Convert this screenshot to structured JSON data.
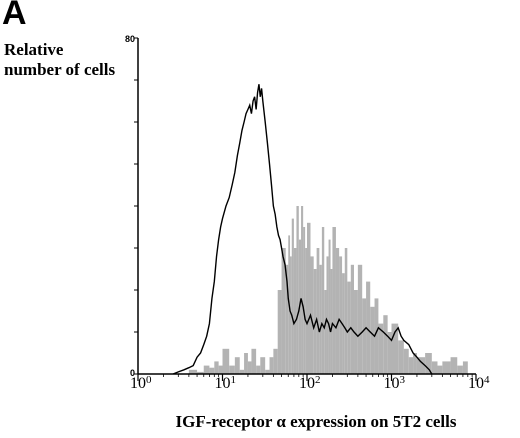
{
  "panel_label": "A",
  "chart_data": {
    "type": "area",
    "title": "",
    "ylabel": "Relative number of cells",
    "xlabel": "IGF-receptor α expression on 5T2 cells",
    "x_scale": "log",
    "xlim": [
      1,
      10000
    ],
    "ylim": [
      0,
      80
    ],
    "y_max_label": "80",
    "y_zero_label": "0",
    "x_ticks": [
      {
        "base": "10",
        "exp": "0",
        "value": 1
      },
      {
        "base": "10",
        "exp": "1",
        "value": 10
      },
      {
        "base": "10",
        "exp": "2",
        "value": 100
      },
      {
        "base": "10",
        "exp": "3",
        "value": 1000
      },
      {
        "base": "10",
        "exp": "4",
        "value": 10000
      }
    ],
    "series": [
      {
        "style": "filled",
        "color": "#b3b3b3",
        "x": [
          3,
          4,
          5,
          6,
          7,
          8,
          9,
          10,
          12,
          14,
          16,
          18,
          20,
          22,
          25,
          28,
          32,
          36,
          40,
          45,
          50,
          56,
          60,
          63,
          66,
          70,
          75,
          80,
          85,
          90,
          95,
          100,
          110,
          120,
          130,
          140,
          150,
          160,
          170,
          180,
          190,
          200,
          220,
          240,
          260,
          280,
          300,
          330,
          360,
          400,
          450,
          500,
          560,
          630,
          700,
          800,
          900,
          1000,
          1200,
          1400,
          1600,
          1800,
          2000,
          2500,
          3000,
          3500,
          4000,
          5000,
          6000,
          7000,
          8000
        ],
        "y": [
          0,
          1,
          0.5,
          2,
          1.5,
          3,
          2,
          6,
          2,
          4,
          1,
          5,
          3,
          6,
          2,
          4,
          1,
          4,
          6,
          20,
          30,
          26,
          33,
          28,
          37,
          30,
          40,
          32,
          40,
          35,
          30,
          36,
          28,
          25,
          30,
          26,
          35,
          20,
          28,
          32,
          25,
          35,
          30,
          28,
          24,
          30,
          22,
          26,
          20,
          26,
          18,
          22,
          16,
          18,
          12,
          14,
          10,
          12,
          8,
          6,
          4,
          5,
          4,
          5,
          3,
          2,
          3,
          4,
          2,
          3,
          0
        ]
      },
      {
        "style": "line",
        "color": "#000000",
        "x": [
          2.6,
          3,
          3.5,
          4,
          4.5,
          5,
          5.5,
          6,
          6.5,
          7,
          7.5,
          8,
          8.5,
          9,
          9.5,
          10,
          11,
          12,
          13,
          14,
          15,
          16,
          17,
          18,
          19,
          20,
          21,
          22,
          23,
          24,
          25,
          26,
          27,
          28,
          29,
          30,
          32,
          34,
          36,
          38,
          40,
          42,
          44,
          46,
          48,
          50,
          52,
          55,
          58,
          60,
          63,
          66,
          70,
          75,
          80,
          85,
          90,
          95,
          100,
          110,
          120,
          130,
          140,
          150,
          160,
          170,
          180,
          190,
          200,
          220,
          240,
          260,
          280,
          300,
          330,
          360,
          400,
          450,
          500,
          560,
          630,
          700,
          800,
          900,
          1000,
          1100,
          1200,
          1300,
          1400,
          1600,
          1800,
          2000,
          2200,
          2500,
          2800,
          3000
        ],
        "y": [
          0,
          0.5,
          1,
          1.5,
          2,
          4,
          5,
          7,
          9,
          12,
          18,
          22,
          28,
          32,
          35,
          37,
          40,
          42,
          45,
          48,
          52,
          55,
          58,
          60,
          62,
          63,
          64,
          62,
          65,
          66,
          63,
          67,
          69,
          66,
          68,
          65,
          60,
          55,
          50,
          45,
          40,
          38,
          35,
          33,
          32,
          30,
          28,
          26,
          22,
          18,
          15,
          14,
          12,
          13,
          15,
          18,
          16,
          13,
          12,
          14,
          11,
          13,
          10,
          12,
          11,
          13,
          12,
          10,
          12,
          11,
          13,
          12,
          11,
          10,
          11,
          10,
          9,
          10,
          11,
          10,
          9,
          11,
          10,
          9,
          8,
          10,
          11,
          9,
          8,
          7,
          5,
          4,
          3,
          2,
          1,
          0
        ]
      }
    ]
  }
}
